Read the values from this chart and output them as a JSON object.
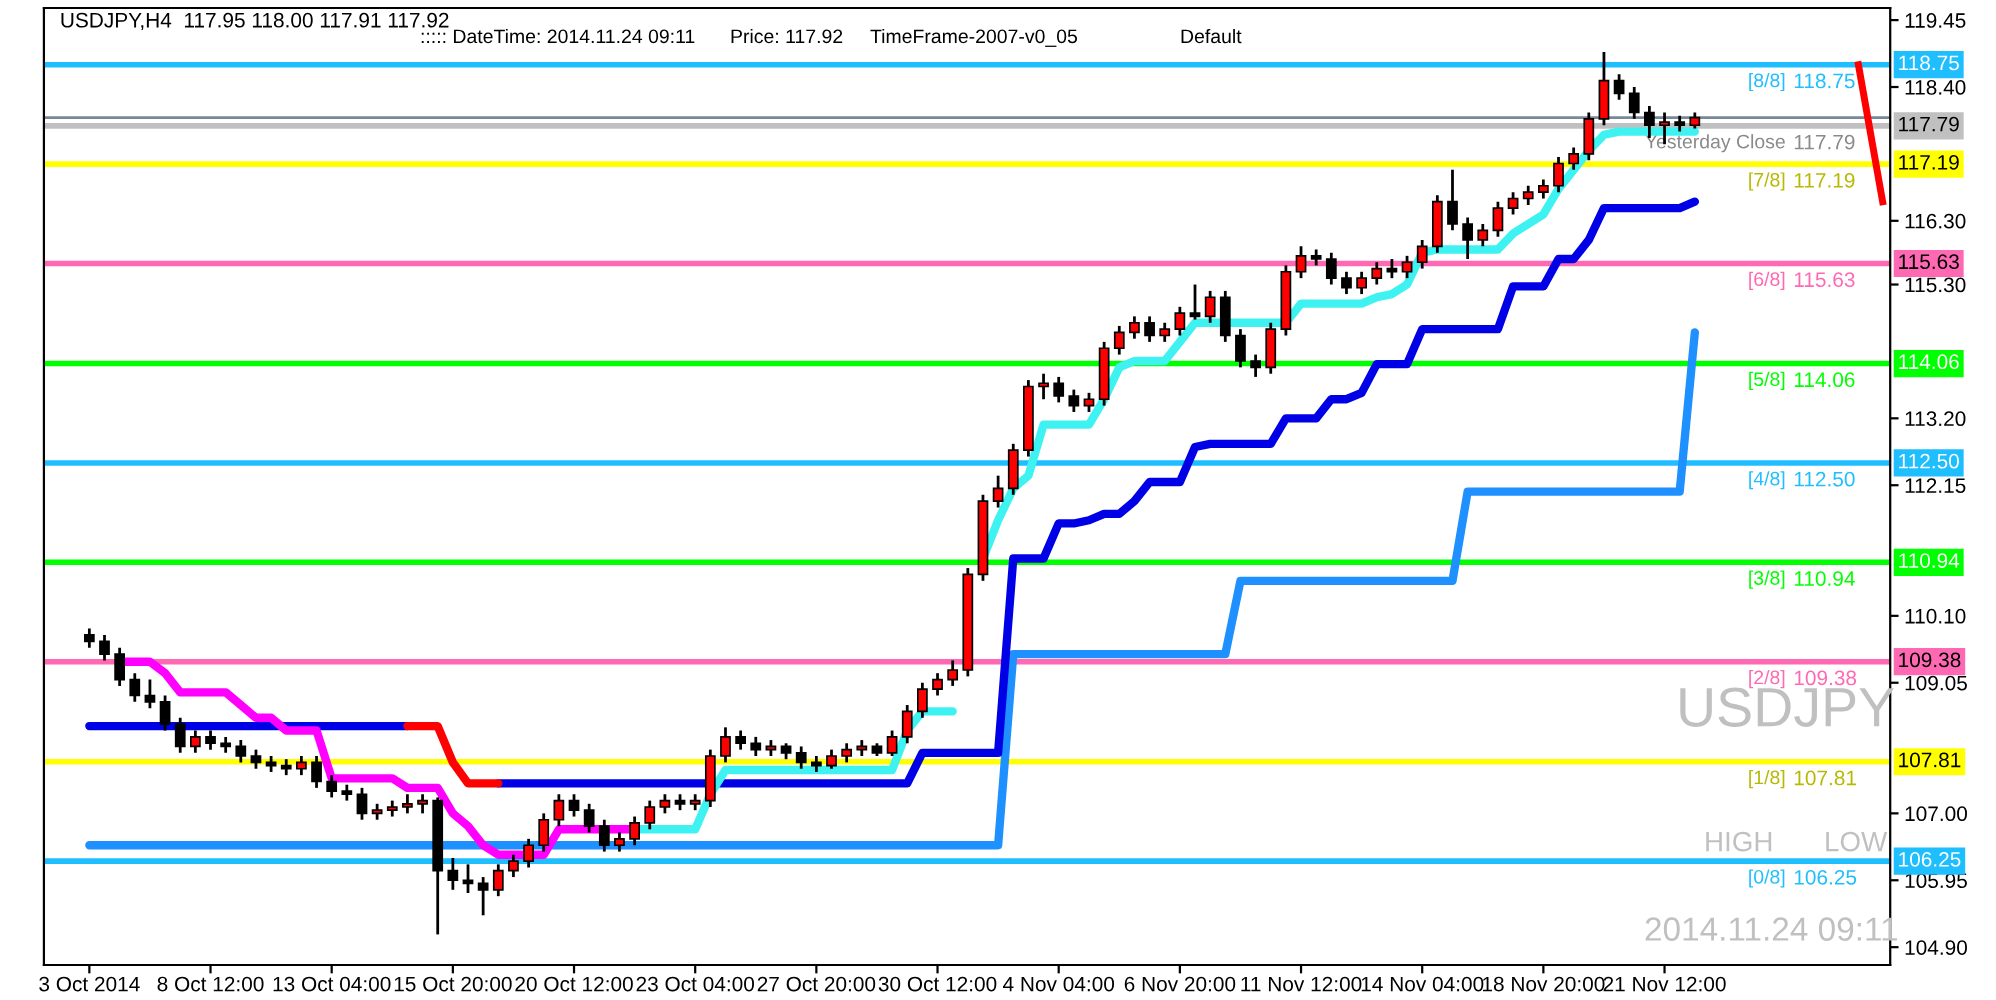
{
  "chart_data": {
    "type": "candlestick",
    "title": "USDJPY,H4  117.95 118.00 117.91 117.92",
    "categories": [
      "3 Oct 2014",
      null,
      null,
      null,
      null,
      null,
      null,
      null,
      "8 Oct 12:00",
      null,
      null,
      null,
      null,
      null,
      null,
      null,
      "13 Oct 04:00",
      null,
      null,
      null,
      null,
      null,
      null,
      null,
      "15 Oct 20:00",
      null,
      null,
      null,
      null,
      null,
      null,
      null,
      "20 Oct 12:00",
      null,
      null,
      null,
      null,
      null,
      null,
      null,
      "23 Oct 04:00",
      null,
      null,
      null,
      null,
      null,
      null,
      null,
      "27 Oct 20:00",
      null,
      null,
      null,
      null,
      null,
      null,
      null,
      "30 Oct 12:00",
      null,
      null,
      null,
      null,
      null,
      null,
      null,
      "4 Nov 04:00",
      null,
      null,
      null,
      null,
      null,
      null,
      null,
      "6 Nov 20:00",
      null,
      null,
      null,
      null,
      null,
      null,
      null,
      "11 Nov 12:00",
      null,
      null,
      null,
      null,
      null,
      null,
      null,
      "14 Nov 04:00",
      null,
      null,
      null,
      null,
      null,
      null,
      null,
      "18 Nov 20:00",
      null,
      null,
      null,
      null,
      null,
      null,
      null,
      "21 Nov 12:00",
      null,
      null
    ],
    "ohlc": [
      [
        109.8,
        109.9,
        109.6,
        109.7
      ],
      [
        109.7,
        109.8,
        109.4,
        109.5
      ],
      [
        109.5,
        109.6,
        109.0,
        109.1
      ],
      [
        109.1,
        109.2,
        108.75,
        108.85
      ],
      [
        108.85,
        109.1,
        108.65,
        108.75
      ],
      [
        108.75,
        108.85,
        108.3,
        108.4
      ],
      [
        108.4,
        108.5,
        107.95,
        108.05
      ],
      [
        108.05,
        108.3,
        107.95,
        108.2
      ],
      [
        108.2,
        108.3,
        108.0,
        108.1
      ],
      [
        108.1,
        108.2,
        107.95,
        108.05
      ],
      [
        108.05,
        108.15,
        107.8,
        107.9
      ],
      [
        107.9,
        108.0,
        107.7,
        107.8
      ],
      [
        107.8,
        107.9,
        107.65,
        107.75
      ],
      [
        107.75,
        107.85,
        107.6,
        107.7
      ],
      [
        107.7,
        107.9,
        107.6,
        107.8
      ],
      [
        107.8,
        107.9,
        107.4,
        107.5
      ],
      [
        107.5,
        107.6,
        107.25,
        107.35
      ],
      [
        107.35,
        107.45,
        107.2,
        107.3
      ],
      [
        107.3,
        107.4,
        106.9,
        107.0
      ],
      [
        107.0,
        107.15,
        106.9,
        107.05
      ],
      [
        107.05,
        107.2,
        106.95,
        107.1
      ],
      [
        107.1,
        107.3,
        107.0,
        107.15
      ],
      [
        107.15,
        107.3,
        107.0,
        107.2
      ],
      [
        107.2,
        107.25,
        105.1,
        106.1
      ],
      [
        106.1,
        106.3,
        105.8,
        105.95
      ],
      [
        105.95,
        106.2,
        105.75,
        105.9
      ],
      [
        105.9,
        106.0,
        105.4,
        105.8
      ],
      [
        105.8,
        106.2,
        105.7,
        106.1
      ],
      [
        106.1,
        106.35,
        106.0,
        106.25
      ],
      [
        106.25,
        106.6,
        106.15,
        106.5
      ],
      [
        106.5,
        107.0,
        106.4,
        106.9
      ],
      [
        106.9,
        107.3,
        106.8,
        107.2
      ],
      [
        107.2,
        107.3,
        106.95,
        107.05
      ],
      [
        107.05,
        107.15,
        106.7,
        106.8
      ],
      [
        106.8,
        106.9,
        106.4,
        106.5
      ],
      [
        106.5,
        106.7,
        106.4,
        106.6
      ],
      [
        106.6,
        106.95,
        106.5,
        106.85
      ],
      [
        106.85,
        107.2,
        106.75,
        107.1
      ],
      [
        107.1,
        107.3,
        107.0,
        107.2
      ],
      [
        107.2,
        107.3,
        107.05,
        107.15
      ],
      [
        107.15,
        107.3,
        107.05,
        107.2
      ],
      [
        107.2,
        108.0,
        107.1,
        107.9
      ],
      [
        107.9,
        108.35,
        107.8,
        108.2
      ],
      [
        108.2,
        108.3,
        108.0,
        108.1
      ],
      [
        108.1,
        108.2,
        107.9,
        108.0
      ],
      [
        108.0,
        108.15,
        107.9,
        108.05
      ],
      [
        108.05,
        108.1,
        107.85,
        107.95
      ],
      [
        107.95,
        108.05,
        107.7,
        107.8
      ],
      [
        107.8,
        107.9,
        107.65,
        107.75
      ],
      [
        107.75,
        108.0,
        107.7,
        107.9
      ],
      [
        107.9,
        108.1,
        107.8,
        108.0
      ],
      [
        108.0,
        108.15,
        107.9,
        108.05
      ],
      [
        108.05,
        108.1,
        107.9,
        107.95
      ],
      [
        107.95,
        108.3,
        107.9,
        108.2
      ],
      [
        108.2,
        108.7,
        108.1,
        108.6
      ],
      [
        108.6,
        109.05,
        108.5,
        108.95
      ],
      [
        108.95,
        109.2,
        108.85,
        109.1
      ],
      [
        109.1,
        109.4,
        109.0,
        109.25
      ],
      [
        109.25,
        110.85,
        109.15,
        110.75
      ],
      [
        110.75,
        112.0,
        110.65,
        111.9
      ],
      [
        111.9,
        112.3,
        111.8,
        112.1
      ],
      [
        112.1,
        112.8,
        112.0,
        112.7
      ],
      [
        112.7,
        113.8,
        112.6,
        113.7
      ],
      [
        113.7,
        113.9,
        113.5,
        113.75
      ],
      [
        113.75,
        113.85,
        113.45,
        113.55
      ],
      [
        113.55,
        113.65,
        113.3,
        113.4
      ],
      [
        113.4,
        113.6,
        113.3,
        113.5
      ],
      [
        113.5,
        114.4,
        113.4,
        114.3
      ],
      [
        114.3,
        114.65,
        114.2,
        114.55
      ],
      [
        114.55,
        114.8,
        114.45,
        114.7
      ],
      [
        114.7,
        114.8,
        114.4,
        114.5
      ],
      [
        114.5,
        114.7,
        114.4,
        114.6
      ],
      [
        114.6,
        114.95,
        114.5,
        114.85
      ],
      [
        114.85,
        115.3,
        114.75,
        114.8
      ],
      [
        114.8,
        115.2,
        114.7,
        115.1
      ],
      [
        115.1,
        115.2,
        114.4,
        114.5
      ],
      [
        114.5,
        114.6,
        114.0,
        114.1
      ],
      [
        114.1,
        114.2,
        113.85,
        114.0
      ],
      [
        114.0,
        114.7,
        113.9,
        114.6
      ],
      [
        114.6,
        115.6,
        114.5,
        115.5
      ],
      [
        115.5,
        115.9,
        115.4,
        115.75
      ],
      [
        115.75,
        115.85,
        115.6,
        115.7
      ],
      [
        115.7,
        115.8,
        115.3,
        115.4
      ],
      [
        115.4,
        115.5,
        115.15,
        115.25
      ],
      [
        115.25,
        115.5,
        115.15,
        115.4
      ],
      [
        115.4,
        115.65,
        115.3,
        115.55
      ],
      [
        115.55,
        115.7,
        115.4,
        115.5
      ],
      [
        115.5,
        115.75,
        115.4,
        115.65
      ],
      [
        115.65,
        116.0,
        115.55,
        115.9
      ],
      [
        115.9,
        116.7,
        115.8,
        116.6
      ],
      [
        116.6,
        117.1,
        116.15,
        116.25
      ],
      [
        116.25,
        116.35,
        115.7,
        116.0
      ],
      [
        116.0,
        116.25,
        115.9,
        116.15
      ],
      [
        116.15,
        116.6,
        116.05,
        116.5
      ],
      [
        116.5,
        116.75,
        116.4,
        116.65
      ],
      [
        116.65,
        116.85,
        116.55,
        116.75
      ],
      [
        116.75,
        116.95,
        116.65,
        116.85
      ],
      [
        116.85,
        117.3,
        116.75,
        117.2
      ],
      [
        117.2,
        117.45,
        117.1,
        117.35
      ],
      [
        117.35,
        118.0,
        117.25,
        117.9
      ],
      [
        117.9,
        118.95,
        117.8,
        118.5
      ],
      [
        118.5,
        118.6,
        118.2,
        118.3
      ],
      [
        118.3,
        118.4,
        117.9,
        118.0
      ],
      [
        118.0,
        118.1,
        117.6,
        117.8
      ],
      [
        117.8,
        118.0,
        117.5,
        117.85
      ],
      [
        117.85,
        117.95,
        117.7,
        117.8
      ],
      [
        117.8,
        118.0,
        117.75,
        117.92
      ]
    ],
    "colors": [
      "#000000",
      "#000000",
      "#000000",
      "#000000",
      "#000000",
      "#000000",
      "#000000",
      "#ff0000",
      "#000000",
      "#000000",
      "#000000",
      "#000000",
      "#000000",
      "#000000",
      "#ff0000",
      "#000000",
      "#000000",
      "#000000",
      "#000000",
      "#ff0000",
      "#ff0000",
      "#ff0000",
      "#ff0000",
      "#000000",
      "#000000",
      "#000000",
      "#000000",
      "#ff0000",
      "#ff0000",
      "#ff0000",
      "#ff0000",
      "#ff0000",
      "#000000",
      "#000000",
      "#000000",
      "#ff0000",
      "#ff0000",
      "#ff0000",
      "#ff0000",
      "#000000",
      "#ff0000",
      "#ff0000",
      "#ff0000",
      "#000000",
      "#000000",
      "#ff0000",
      "#000000",
      "#000000",
      "#000000",
      "#ff0000",
      "#ff0000",
      "#ff0000",
      "#000000",
      "#ff0000",
      "#ff0000",
      "#ff0000",
      "#ff0000",
      "#ff0000",
      "#ff0000",
      "#ff0000",
      "#ff0000",
      "#ff0000",
      "#ff0000",
      "#ff0000",
      "#000000",
      "#000000",
      "#ff0000",
      "#ff0000",
      "#ff0000",
      "#ff0000",
      "#000000",
      "#ff0000",
      "#ff0000",
      "#000000",
      "#ff0000",
      "#000000",
      "#000000",
      "#000000",
      "#ff0000",
      "#ff0000",
      "#ff0000",
      "#000000",
      "#000000",
      "#000000",
      "#ff0000",
      "#ff0000",
      "#000000",
      "#ff0000",
      "#ff0000",
      "#ff0000",
      "#000000",
      "#000000",
      "#ff0000",
      "#ff0000",
      "#ff0000",
      "#ff0000",
      "#ff0000",
      "#ff0000",
      "#ff0000",
      "#ff0000",
      "#ff0000",
      "#000000",
      "#000000",
      "#000000",
      "#ff0000",
      "#000000",
      "#ff0000"
    ],
    "series": [
      {
        "type": "line",
        "color": "#1e90ff",
        "values": [
          106.5,
          106.5,
          106.5,
          106.5,
          106.5,
          106.5,
          106.5,
          106.5,
          106.5,
          106.5,
          106.5,
          106.5,
          106.5,
          106.5,
          106.5,
          106.5,
          106.5,
          106.5,
          106.5,
          106.5,
          106.5,
          106.5,
          106.5,
          106.5,
          106.5,
          106.5,
          106.5,
          106.5,
          106.5,
          106.5,
          106.5,
          106.5,
          106.5,
          106.5,
          106.5,
          106.5,
          106.5,
          106.5,
          106.5,
          106.5,
          106.5,
          106.5,
          106.5,
          106.5,
          106.5,
          106.5,
          106.5,
          106.5,
          106.5,
          106.5,
          106.5,
          106.5,
          106.5,
          106.5,
          106.5,
          106.5,
          106.5,
          106.5,
          106.5,
          106.5,
          106.5,
          109.5,
          109.5,
          109.5,
          109.5,
          109.5,
          109.5,
          109.5,
          109.5,
          109.5,
          109.5,
          109.5,
          109.5,
          109.5,
          109.5,
          109.5,
          110.65,
          110.65,
          110.65,
          110.65,
          110.65,
          110.65,
          110.65,
          110.65,
          110.65,
          110.65,
          110.65,
          110.65,
          110.65,
          110.65,
          110.65,
          112.05,
          112.05,
          112.05,
          112.05,
          112.05,
          112.05,
          112.05,
          112.05,
          112.05,
          112.05,
          112.05,
          112.05,
          112.05,
          112.05,
          112.05,
          114.55
        ]
      },
      {
        "type": "line",
        "color": "#0000e6",
        "values": [
          108.37,
          108.37,
          108.37,
          108.37,
          108.37,
          108.37,
          108.37,
          108.37,
          108.37,
          108.37,
          108.37,
          108.37,
          108.37,
          108.37,
          108.37,
          108.37,
          108.37,
          108.37,
          108.37,
          108.37,
          108.37,
          108.37,
          null,
          null,
          null,
          null,
          null,
          107.47,
          107.47,
          107.47,
          107.47,
          107.47,
          107.47,
          107.47,
          107.47,
          107.47,
          107.47,
          107.47,
          107.47,
          107.47,
          107.47,
          107.47,
          107.47,
          107.47,
          107.47,
          107.47,
          107.47,
          107.47,
          107.47,
          107.47,
          107.47,
          107.47,
          107.47,
          107.47,
          107.47,
          107.95,
          107.95,
          107.95,
          107.95,
          107.95,
          107.95,
          111.0,
          111.0,
          111.0,
          111.55,
          111.55,
          111.6,
          111.7,
          111.7,
          111.9,
          112.2,
          112.2,
          112.2,
          112.75,
          112.8,
          112.8,
          112.8,
          112.8,
          112.8,
          113.2,
          113.2,
          113.2,
          113.5,
          113.5,
          113.6,
          114.05,
          114.05,
          114.05,
          114.6,
          114.6,
          114.6,
          114.6,
          114.6,
          114.6,
          115.27,
          115.27,
          115.27,
          115.7,
          115.7,
          116.0,
          116.5,
          116.5,
          116.5,
          116.5,
          116.5,
          116.5,
          116.6
        ]
      },
      {
        "type": "line",
        "color": "#ff0000",
        "values": [
          null,
          null,
          null,
          null,
          null,
          null,
          null,
          null,
          null,
          null,
          null,
          null,
          null,
          null,
          null,
          null,
          null,
          null,
          null,
          null,
          null,
          108.37,
          108.37,
          108.37,
          107.8,
          107.47,
          107.47,
          107.47,
          null,
          null,
          null,
          null,
          null,
          null,
          null,
          null,
          null,
          null,
          null,
          null,
          null,
          null,
          null,
          null,
          null,
          null,
          null,
          null,
          null,
          null,
          null,
          null,
          null,
          null,
          null,
          null,
          null,
          null,
          null,
          null,
          null,
          null,
          null,
          null,
          null,
          null,
          null,
          null,
          null,
          null,
          null,
          null,
          null,
          null,
          null,
          null,
          null,
          null,
          null,
          null,
          null,
          null,
          null,
          null,
          null,
          null,
          null,
          null,
          null,
          null,
          null,
          null,
          null,
          null,
          null,
          null,
          null,
          null,
          null,
          null,
          null,
          null,
          null,
          null,
          null,
          null,
          null
        ]
      },
      {
        "type": "line",
        "color": "#ff00ff",
        "values": [
          null,
          null,
          109.38,
          109.38,
          109.38,
          109.2,
          108.9,
          108.9,
          108.9,
          108.9,
          108.7,
          108.5,
          108.5,
          108.3,
          108.3,
          108.3,
          107.55,
          107.55,
          107.55,
          107.55,
          107.55,
          107.4,
          107.4,
          107.4,
          107.0,
          106.8,
          106.5,
          106.35,
          106.35,
          106.35,
          106.35,
          106.75,
          106.75,
          106.75,
          106.75,
          106.75,
          106.75,
          null,
          null,
          null,
          null,
          null,
          null,
          null,
          null,
          null,
          null,
          null,
          null,
          null,
          null,
          null,
          null,
          null,
          null,
          null,
          null,
          null,
          null,
          null,
          null,
          null,
          null,
          null,
          null,
          null,
          null,
          null,
          null,
          null,
          null,
          null,
          null,
          null,
          null,
          null,
          null,
          null,
          null,
          null,
          null,
          null,
          null,
          null,
          null,
          null,
          null,
          null,
          null,
          null,
          null,
          null,
          null,
          null,
          null,
          null,
          null,
          null,
          null,
          null,
          null,
          null,
          null,
          null,
          null,
          null,
          null
        ]
      },
      {
        "type": "line",
        "color": "#3ff2f2",
        "values": [
          null,
          null,
          null,
          null,
          null,
          null,
          null,
          null,
          null,
          null,
          null,
          null,
          null,
          null,
          null,
          null,
          null,
          null,
          null,
          null,
          null,
          null,
          null,
          null,
          null,
          null,
          null,
          null,
          null,
          null,
          null,
          null,
          null,
          null,
          null,
          null,
          106.75,
          106.75,
          106.75,
          106.75,
          106.75,
          107.3,
          107.68,
          107.68,
          107.68,
          107.68,
          107.68,
          107.68,
          107.68,
          107.68,
          107.68,
          107.68,
          107.68,
          107.68,
          108.3,
          108.6,
          108.6,
          108.6,
          null,
          111.0,
          111.6,
          112.1,
          112.3,
          113.1,
          113.1,
          113.1,
          113.1,
          113.5,
          114.0,
          114.1,
          114.1,
          114.1,
          114.4,
          114.7,
          114.7,
          114.7,
          114.7,
          114.7,
          114.7,
          114.7,
          115.0,
          115.0,
          115.0,
          115.0,
          115.0,
          115.1,
          115.15,
          115.3,
          115.8,
          115.85,
          115.85,
          115.85,
          115.85,
          115.85,
          116.1,
          116.25,
          116.4,
          116.8,
          117.1,
          117.4,
          117.65,
          117.7,
          117.7,
          117.7,
          117.7,
          117.7,
          117.7
        ]
      }
    ],
    "ylim": [
      104.62,
      119.64
    ],
    "yticks": [
      {
        "value": 104.9,
        "label": "104.90"
      },
      105.95,
      {
        "value": 107.0,
        "label": "107.00"
      },
      109.05,
      {
        "value": 110.1,
        "label": "110.10"
      },
      112.15,
      {
        "value": 113.2,
        "label": "113.20"
      },
      {
        "value": 115.3,
        "label": "115.30"
      },
      {
        "value": 116.3,
        "label": "116.30"
      },
      {
        "value": 118.4,
        "label": "118.40"
      },
      119.45
    ],
    "ref_lines": [
      {
        "axis": "y",
        "value": 118.75,
        "label": "118.75",
        "color": "#1ebeff"
      },
      {
        "axis": "y",
        "value": 117.19,
        "label": "117.19",
        "color": "#ffff00"
      },
      {
        "axis": "y",
        "value": 115.63,
        "label": "115.63",
        "color": "#ff69b4"
      },
      {
        "axis": "y",
        "value": 114.06,
        "label": "114.06",
        "color": "#00ff00"
      },
      {
        "axis": "y",
        "value": 112.5,
        "label": "112.50",
        "color": "#1ebeff"
      },
      {
        "axis": "y",
        "value": 110.94,
        "label": "110.94",
        "color": "#00ff00"
      },
      {
        "axis": "y",
        "value": 109.38,
        "label": "109.38",
        "color": "#ff69b4"
      },
      {
        "axis": "y",
        "value": 107.81,
        "label": "107.81",
        "color": "#ffff00"
      },
      {
        "axis": "y",
        "value": 106.25,
        "label": "106.25",
        "color": "#1ebeff"
      },
      {
        "axis": "y",
        "value": 117.79,
        "label": "117.79",
        "color": "#c0c0c0"
      },
      {
        "axis": "y",
        "value": 117.92,
        "color": "#778899"
      }
    ],
    "annotations": [
      "::::: DateTime: 2014.11.24 09:11",
      "Price: 117.92",
      "TimeFrame-2007-v0_05",
      "Default",
      "USDJPY",
      "HIGH",
      "LOW",
      "2014.11.24 09:11",
      {
        "text": "[8/8]",
        "y": 118.75
      },
      {
        "text": "[7/8]",
        "y": 117.19
      },
      {
        "text": "[6/8]",
        "y": 115.63
      },
      {
        "text": "[5/8]",
        "y": 114.06
      },
      {
        "text": "[4/8]",
        "y": 112.5
      },
      {
        "text": "[3/8]",
        "y": 110.94
      },
      {
        "text": "[2/8]",
        "y": 109.38
      },
      {
        "text": "[1/8]",
        "y": 107.81
      },
      {
        "text": "[0/8]",
        "y": 106.25
      },
      {
        "text": "Yesterday Close",
        "y": 117.79
      }
    ]
  }
}
